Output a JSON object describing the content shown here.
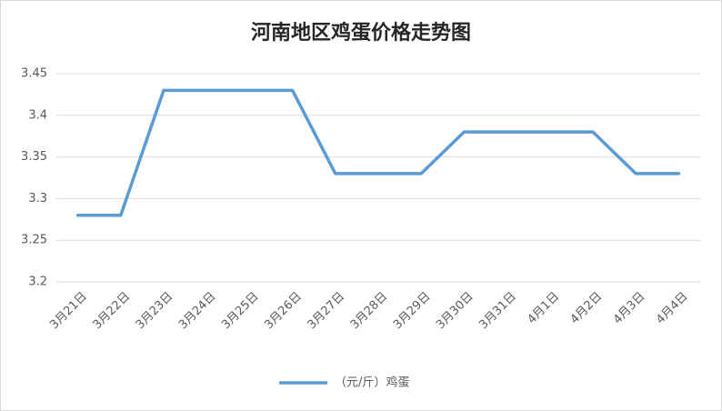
{
  "chart_data": {
    "type": "line",
    "title": "河南地区鸡蛋价格走势图",
    "categories": [
      "3月21日",
      "3月22日",
      "3月23日",
      "3月24日",
      "3月25日",
      "3月26日",
      "3月27日",
      "3月28日",
      "3月29日",
      "3月30日",
      "3月31日",
      "4月1日",
      "4月2日",
      "4月3日",
      "4月4日"
    ],
    "series": [
      {
        "name": "（元/斤）鸡蛋",
        "color": "#5b9bd5",
        "values": [
          3.28,
          3.28,
          3.43,
          3.43,
          3.43,
          3.43,
          3.33,
          3.33,
          3.33,
          3.38,
          3.38,
          3.38,
          3.38,
          3.33,
          3.33
        ]
      }
    ],
    "ylim": [
      3.2,
      3.45
    ],
    "yticks": [
      3.2,
      3.25,
      3.3,
      3.35,
      3.4,
      3.45
    ],
    "grid": true,
    "legend": "bottom"
  }
}
